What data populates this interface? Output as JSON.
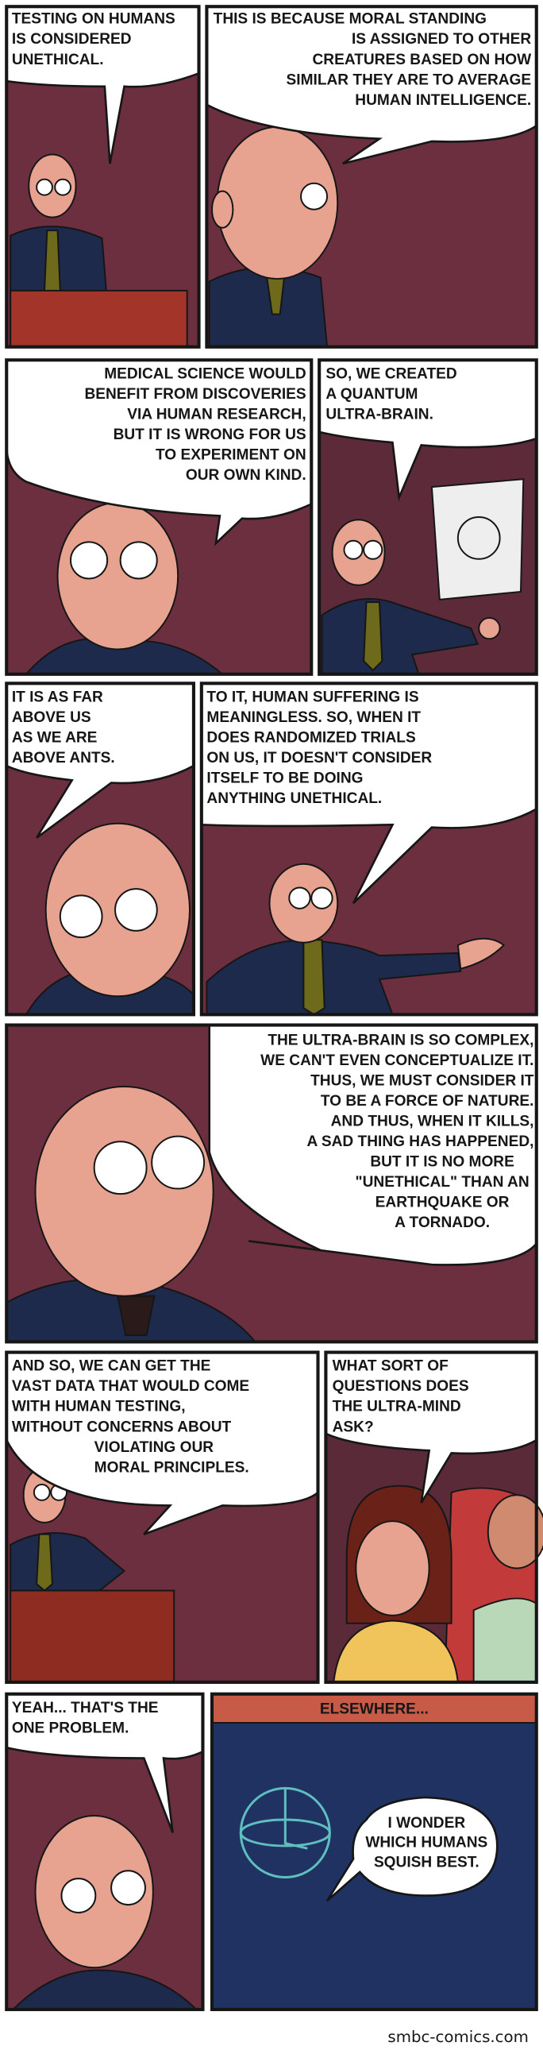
{
  "panels": [
    {
      "lines": [
        "TESTING ON HUMANS",
        "IS CONSIDERED",
        "UNETHICAL."
      ]
    },
    {
      "lines": [
        "THIS IS BECAUSE MORAL STANDING",
        "IS ASSIGNED TO OTHER",
        "CREATURES BASED ON HOW",
        "SIMILAR THEY ARE TO AVERAGE",
        "HUMAN INTELLIGENCE."
      ]
    },
    {
      "lines": [
        "MEDICAL SCIENCE WOULD",
        "BENEFIT FROM DISCOVERIES",
        "VIA HUMAN RESEARCH,",
        "BUT IT IS WRONG FOR US",
        "TO EXPERIMENT ON",
        "OUR OWN KIND."
      ]
    },
    {
      "lines": [
        "SO, WE CREATED",
        "A QUANTUM",
        "ULTRA-BRAIN."
      ]
    },
    {
      "lines": [
        "IT IS AS FAR",
        "ABOVE US",
        "AS WE ARE",
        "ABOVE ANTS."
      ]
    },
    {
      "lines": [
        "TO IT, HUMAN SUFFERING IS",
        "MEANINGLESS. SO, WHEN IT",
        "DOES RANDOMIZED TRIALS",
        "ON US, IT DOESN'T CONSIDER",
        "ITSELF TO BE DOING",
        "ANYTHING UNETHICAL."
      ]
    },
    {
      "lines": [
        "THE ULTRA-BRAIN IS SO COMPLEX,",
        "WE CAN'T EVEN CONCEPTUALIZE IT.",
        "THUS, WE MUST CONSIDER IT",
        "TO BE A FORCE OF NATURE.",
        "AND THUS, WHEN IT KILLS,",
        "A SAD THING HAS HAPPENED,",
        "BUT IT IS NO MORE",
        "\"UNETHICAL\" THAN AN",
        "EARTHQUAKE OR",
        "A TORNADO."
      ]
    },
    {
      "lines": [
        "AND SO, WE CAN GET THE",
        "VAST DATA THAT WOULD COME",
        "WITH HUMAN TESTING,",
        "WITHOUT CONCERNS ABOUT",
        "VIOLATING OUR",
        "MORAL PRINCIPLES."
      ]
    },
    {
      "lines": [
        "WHAT SORT OF",
        "QUESTIONS DOES",
        "THE ULTRA-MIND",
        "ASK?"
      ]
    },
    {
      "lines": [
        "YEAH... THAT'S THE",
        "ONE PROBLEM."
      ]
    },
    {
      "lines": [
        "I WONDER",
        "WHICH HUMANS",
        "SQUISH BEST."
      ]
    }
  ],
  "banner": "ELSEWHERE...",
  "footer": "smbc-comics.com"
}
